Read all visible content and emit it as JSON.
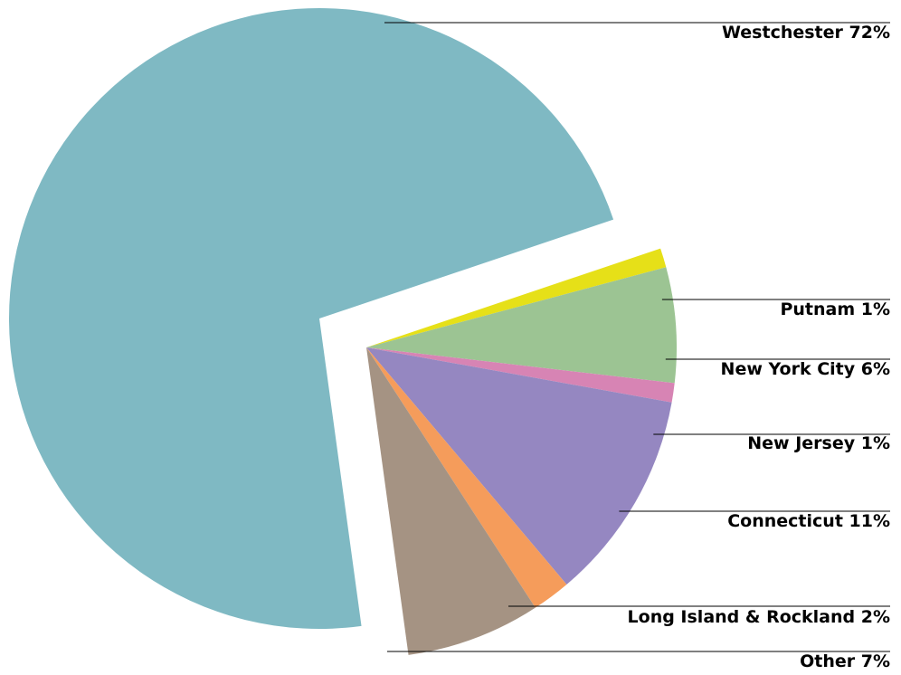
{
  "chart_data": {
    "type": "pie",
    "exploded": true,
    "slices": [
      {
        "label": "Westchester 72%",
        "name": "Westchester",
        "value": 72,
        "color": "#7fb9c3"
      },
      {
        "label": "Putnam 1%",
        "name": "Putnam",
        "value": 1,
        "color": "#e6e018"
      },
      {
        "label": "New York City 6%",
        "name": "New York City",
        "value": 6,
        "color": "#9cc493"
      },
      {
        "label": "New Jersey 1%",
        "name": "New Jersey",
        "value": 1,
        "color": "#d784b4"
      },
      {
        "label": "Connecticut 11%",
        "name": "Connecticut",
        "value": 11,
        "color": "#9587c1"
      },
      {
        "label": "Long Island & Rockland 2%",
        "name": "Long Island & Rockland",
        "value": 2,
        "color": "#f59c5b"
      },
      {
        "label": "Other 7%",
        "name": "Other",
        "value": 7,
        "color": "#a59383"
      }
    ]
  }
}
